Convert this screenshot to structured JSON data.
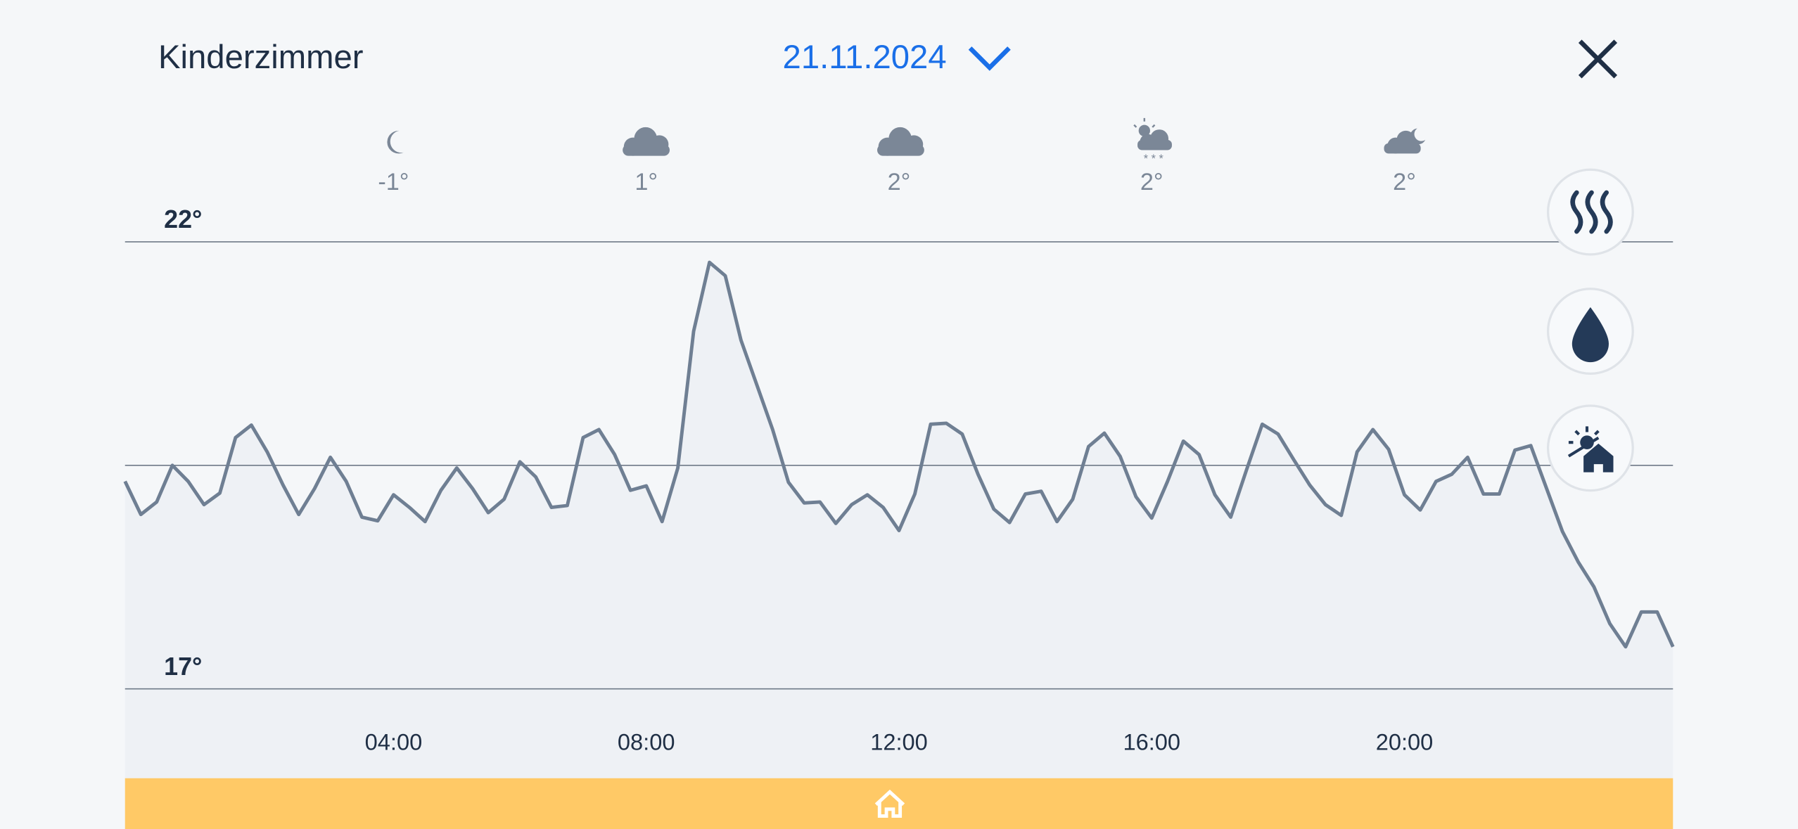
{
  "header": {
    "title": "Kinderzimmer",
    "date": "21.11.2024"
  },
  "forecast": [
    {
      "temp": "-1°"
    },
    {
      "temp": "1°"
    },
    {
      "temp": "2°"
    },
    {
      "temp": "2°"
    },
    {
      "temp": "2°"
    }
  ],
  "chart_data": {
    "type": "line",
    "color": "#6f7f93",
    "x": [
      -0.25,
      0,
      0.25,
      0.5,
      0.75,
      1,
      1.25,
      1.5,
      1.75,
      2,
      2.25,
      2.5,
      2.75,
      3,
      3.25,
      3.5,
      3.75,
      4,
      4.25,
      4.5,
      4.75,
      5,
      5.25,
      5.5,
      5.75,
      6,
      6.25,
      6.5,
      6.75,
      7,
      7.25,
      7.5,
      7.75,
      8,
      8.25,
      8.5,
      8.75,
      9,
      9.25,
      9.5,
      9.75,
      10,
      10.25,
      10.5,
      10.75,
      11,
      11.25,
      11.5,
      11.75,
      12,
      12.25,
      12.5,
      12.75,
      13,
      13.25,
      13.5,
      13.75,
      14,
      14.25,
      14.5,
      14.75,
      15,
      15.25,
      15.5,
      15.75,
      16,
      16.25,
      16.5,
      16.75,
      17,
      17.25,
      17.5,
      17.75,
      18,
      18.25,
      18.5,
      18.75,
      19,
      19.25,
      19.5,
      19.75,
      20,
      20.25,
      20.5,
      20.75,
      21,
      21.25,
      21.5,
      21.75,
      22,
      22.25,
      22.5,
      22.75,
      23,
      23.25,
      23.5,
      23.75,
      24,
      24.25
    ],
    "values": [
      19.32,
      18.95,
      19.09,
      19.5,
      19.32,
      19.06,
      19.19,
      19.81,
      19.95,
      19.65,
      19.28,
      18.95,
      19.24,
      19.59,
      19.32,
      18.92,
      18.88,
      19.17,
      19.03,
      18.87,
      19.22,
      19.47,
      19.24,
      18.97,
      19.12,
      19.54,
      19.37,
      19.03,
      19.05,
      19.81,
      19.9,
      19.62,
      19.22,
      19.27,
      18.87,
      19.47,
      21.0,
      21.77,
      21.62,
      20.9,
      20.4,
      19.9,
      19.31,
      19.08,
      19.09,
      18.85,
      19.06,
      19.17,
      19.03,
      18.77,
      19.18,
      19.96,
      19.97,
      19.85,
      19.4,
      19.01,
      18.86,
      19.18,
      19.21,
      18.87,
      19.12,
      19.71,
      19.86,
      19.6,
      19.15,
      18.91,
      19.32,
      19.77,
      19.62,
      19.17,
      18.92,
      19.45,
      19.96,
      19.85,
      19.56,
      19.28,
      19.06,
      18.94,
      19.65,
      19.9,
      19.68,
      19.17,
      19.0,
      19.32,
      19.4,
      19.59,
      19.18,
      19.18,
      19.67,
      19.72,
      19.24,
      18.76,
      18.42,
      18.14,
      17.73,
      17.47,
      17.86,
      17.86,
      17.47
    ],
    "xlim": [
      -0.25,
      24.25
    ],
    "ylim": [
      17,
      22
    ],
    "yticks": [
      {
        "value": 17,
        "label": "17°"
      },
      {
        "value": 22,
        "label": "22°"
      }
    ],
    "xticks": [
      {
        "value": 4,
        "label": "04:00"
      },
      {
        "value": 8,
        "label": "08:00"
      },
      {
        "value": 12,
        "label": "12:00"
      },
      {
        "value": 16,
        "label": "16:00"
      },
      {
        "value": 20,
        "label": "20:00"
      }
    ]
  }
}
